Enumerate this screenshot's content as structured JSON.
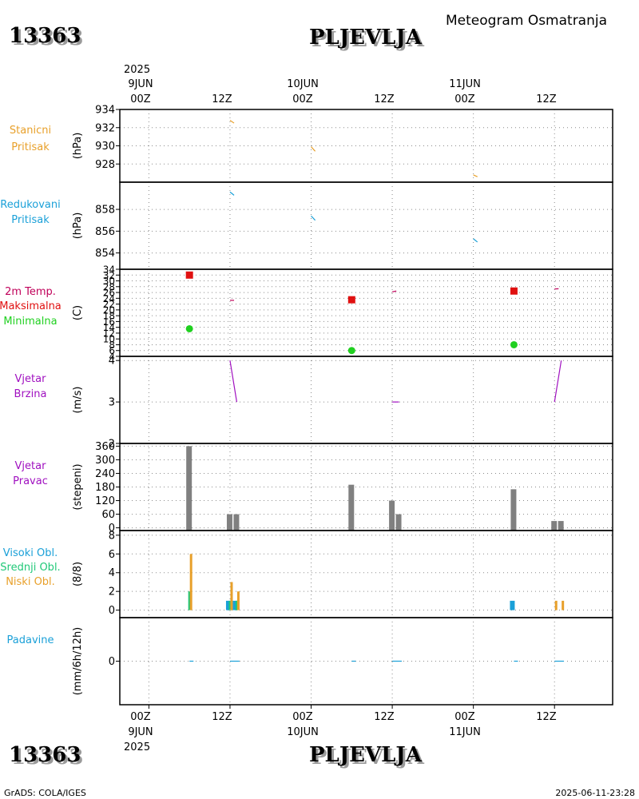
{
  "header": {
    "station_id": "13363",
    "station_name": "PLJEVLJA",
    "title": "Meteogram Osmatranja"
  },
  "time_axis": {
    "year": "2025",
    "date_labels": [
      "9JUN",
      "10JUN",
      "11JUN"
    ],
    "hour_labels": [
      "00Z",
      "12Z",
      "00Z",
      "12Z",
      "00Z",
      "12Z"
    ]
  },
  "footer": {
    "left": "GrADS: COLA/IGES",
    "right": "2025-06-11-23:28"
  },
  "colors": {
    "pressure": "#e8a02a",
    "reduced": "#1aa0d8",
    "tmax": "#e01010",
    "tmin": "#20d020",
    "wind": "#a010c0",
    "bar": "#808080",
    "cloud_high": "#1aa0d8",
    "cloud_mid": "#20c878",
    "cloud_low": "#e8a02a",
    "label_temp": "#c0005a",
    "label_precip": "#1aa0d8"
  },
  "chart_data": [
    {
      "type": "line",
      "panel": "stanicni",
      "labels": [
        "Stanicni",
        "Pritisak"
      ],
      "unit": "(hPa)",
      "ylim": [
        926,
        934
      ],
      "yticks": [
        934,
        932,
        930,
        928
      ],
      "series": [
        {
          "name": "Stanicni Pritisak",
          "segments": [
            [
              [
                12,
                932.8
              ],
              [
                12.6,
                932.5
              ]
            ],
            [
              [
                24,
                929.9
              ],
              [
                24.6,
                929.4
              ]
            ],
            [
              [
                48,
                926.8
              ],
              [
                48.6,
                926.6
              ]
            ]
          ]
        }
      ]
    },
    {
      "type": "line",
      "panel": "redukovani",
      "labels": [
        "Redukovani",
        "Pritisak"
      ],
      "unit": "(hPa)",
      "ylim": [
        852.5,
        860.5
      ],
      "yticks": [
        858,
        856,
        854
      ],
      "series": [
        {
          "name": "Redukovani Pritisak",
          "segments": [
            [
              [
                12,
                859.6
              ],
              [
                12.6,
                859.3
              ]
            ],
            [
              [
                24,
                857.4
              ],
              [
                24.6,
                857
              ]
            ],
            [
              [
                48,
                855.3
              ],
              [
                48.6,
                855
              ]
            ]
          ]
        }
      ]
    },
    {
      "type": "scatter",
      "panel": "temperatura",
      "labels": [
        "2m Temp.",
        "Maksimalna",
        "Minimalna"
      ],
      "unit": "(C)",
      "ylim": [
        4,
        34
      ],
      "yticks": [
        34,
        32,
        30,
        28,
        26,
        24,
        22,
        20,
        18,
        16,
        14,
        12,
        10,
        8,
        6,
        4
      ],
      "series": [
        {
          "name": "Maksimalna",
          "points": [
            [
              6,
              32
            ],
            [
              30,
              23.5
            ],
            [
              54,
              26.5
            ]
          ]
        },
        {
          "name": "Minimalna",
          "points": [
            [
              6,
              13.5
            ],
            [
              30,
              6
            ],
            [
              54,
              8
            ]
          ]
        },
        {
          "name": "2m Temp.",
          "segments": [
            [
              [
                12,
                23.3
              ],
              [
                12.6,
                23.3
              ]
            ],
            [
              [
                36,
                26.2
              ],
              [
                36.6,
                26.5
              ]
            ],
            [
              [
                60,
                27.2
              ],
              [
                60.6,
                27.3
              ]
            ]
          ]
        }
      ]
    },
    {
      "type": "line",
      "panel": "brzina",
      "labels": [
        "Vjetar",
        "Brzina"
      ],
      "unit": "(m/s)",
      "ylim": [
        2,
        4.1
      ],
      "yticks": [
        4,
        3,
        2
      ],
      "series": [
        {
          "name": "Vjetar Brzina",
          "segments": [
            [
              [
                12,
                4
              ],
              [
                13,
                3
              ]
            ],
            [
              [
                36,
                3
              ],
              [
                37,
                3
              ]
            ],
            [
              [
                60,
                3
              ],
              [
                61,
                4
              ]
            ]
          ]
        }
      ]
    },
    {
      "type": "bar",
      "panel": "pravac",
      "labels": [
        "Vjetar",
        "Pravac"
      ],
      "unit": "(stepeni)",
      "ylim": [
        -12,
        372
      ],
      "yticks": [
        360,
        300,
        240,
        180,
        120,
        60,
        0
      ],
      "bars": [
        {
          "x": 6,
          "value": 360
        },
        {
          "x": 12,
          "value": 60
        },
        {
          "x": 13,
          "value": 60
        },
        {
          "x": 30,
          "value": 190
        },
        {
          "x": 36,
          "value": 120
        },
        {
          "x": 37,
          "value": 60
        },
        {
          "x": 54,
          "value": 170
        },
        {
          "x": 60,
          "value": 30
        },
        {
          "x": 61,
          "value": 30
        }
      ]
    },
    {
      "type": "bar",
      "panel": "oblaci",
      "labels": [
        "Visoki Obl.",
        "Srednji Obl.",
        "Niski Obl."
      ],
      "unit": "(8/8)",
      "ylim": [
        -0.8,
        8.5
      ],
      "yticks": [
        8,
        6,
        4,
        2,
        0
      ],
      "series": [
        {
          "name": "Visoki Obl.",
          "bars": [
            {
              "x": 12,
              "value": 1
            },
            {
              "x": 13,
              "value": 1
            },
            {
              "x": 54,
              "value": 1
            }
          ]
        },
        {
          "name": "Srednji Obl.",
          "bars": [
            {
              "x": 6,
              "value": 2
            },
            {
              "x": 12,
              "value": 1
            },
            {
              "x": 13,
              "value": 1
            }
          ]
        },
        {
          "name": "Niski Obl.",
          "bars": [
            {
              "x": 6,
              "value": 6
            },
            {
              "x": 12,
              "value": 3
            },
            {
              "x": 13,
              "value": 2
            },
            {
              "x": 60,
              "value": 1
            },
            {
              "x": 61,
              "value": 1
            }
          ]
        }
      ]
    },
    {
      "type": "line",
      "panel": "padavine",
      "labels": [
        "Padavine"
      ],
      "unit": "(mm/6h/12h)",
      "ylim": [
        -1,
        1
      ],
      "yticks": [
        0
      ],
      "series": [
        {
          "name": "Padavine",
          "segments": [
            [
              [
                6,
                0
              ],
              [
                6.6,
                0
              ]
            ],
            [
              [
                12,
                0
              ],
              [
                13.4,
                0
              ]
            ],
            [
              [
                30,
                0
              ],
              [
                30.6,
                0
              ]
            ],
            [
              [
                36,
                0
              ],
              [
                37.4,
                0
              ]
            ],
            [
              [
                54,
                0
              ],
              [
                54.6,
                0
              ]
            ],
            [
              [
                60,
                0
              ],
              [
                61.4,
                0
              ]
            ]
          ]
        }
      ]
    }
  ]
}
